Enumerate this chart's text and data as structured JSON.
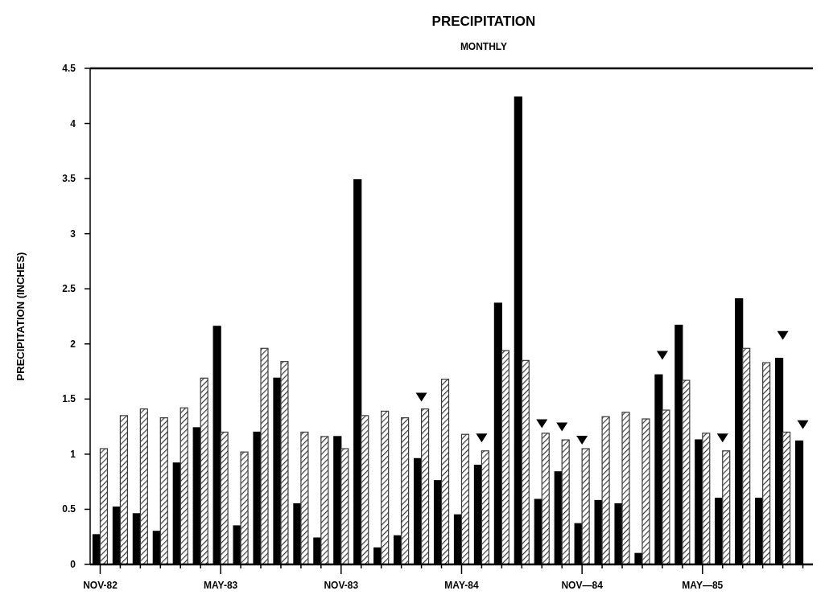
{
  "chart_data": {
    "type": "bar",
    "title": "PRECIPITATION",
    "subtitle": "MONTHLY",
    "ylabel": "PRECIPITATION (INCHES)",
    "categories": [
      "NOV-82",
      null,
      null,
      null,
      null,
      null,
      "MAY-83",
      null,
      null,
      null,
      null,
      null,
      "NOV-83",
      null,
      null,
      null,
      null,
      null,
      "MAY-84",
      null,
      null,
      null,
      null,
      null,
      "NOV—84",
      null,
      null,
      null,
      null,
      null,
      "MAY—85",
      null,
      null,
      null,
      null,
      null
    ],
    "series": [
      {
        "color": "#000000",
        "values": [
          0.27,
          0.52,
          0.46,
          0.3,
          0.92,
          1.24,
          2.16,
          0.35,
          1.2,
          1.69,
          0.55,
          0.24,
          1.16,
          3.49,
          0.15,
          0.26,
          0.96,
          0.76,
          0.45,
          0.9,
          2.37,
          4.24,
          0.59,
          0.84,
          0.37,
          0.58,
          0.55,
          0.1,
          1.72,
          2.17,
          1.13,
          0.6,
          2.41,
          0.6,
          1.87,
          1.12
        ]
      },
      {
        "color": "#3a3a3a",
        "values": [
          1.05,
          1.35,
          1.41,
          1.33,
          1.42,
          1.69,
          1.2,
          1.02,
          1.96,
          1.84,
          1.2,
          1.16,
          1.05,
          1.35,
          1.39,
          1.33,
          1.41,
          1.68,
          1.18,
          1.03,
          1.94,
          1.85,
          1.19,
          1.13,
          1.05,
          1.34,
          1.38,
          1.32,
          1.4,
          1.67,
          1.19,
          1.03,
          1.96,
          1.83,
          1.2,
          null
        ]
      },
      {
        "type": "scatter",
        "color": "#000000",
        "marker": "triangle",
        "values": [
          null,
          null,
          null,
          null,
          null,
          null,
          null,
          null,
          null,
          null,
          null,
          null,
          null,
          null,
          null,
          null,
          1.52,
          null,
          null,
          1.15,
          null,
          null,
          1.28,
          1.25,
          1.13,
          null,
          null,
          null,
          1.9,
          null,
          null,
          1.15,
          null,
          null,
          2.08,
          1.27
        ]
      }
    ],
    "ylim": [
      0,
      4.5
    ],
    "yticks": [
      0,
      0.5,
      1,
      1.5,
      2,
      2.5,
      3,
      3.5,
      4,
      4.5
    ],
    "grid": false
  }
}
